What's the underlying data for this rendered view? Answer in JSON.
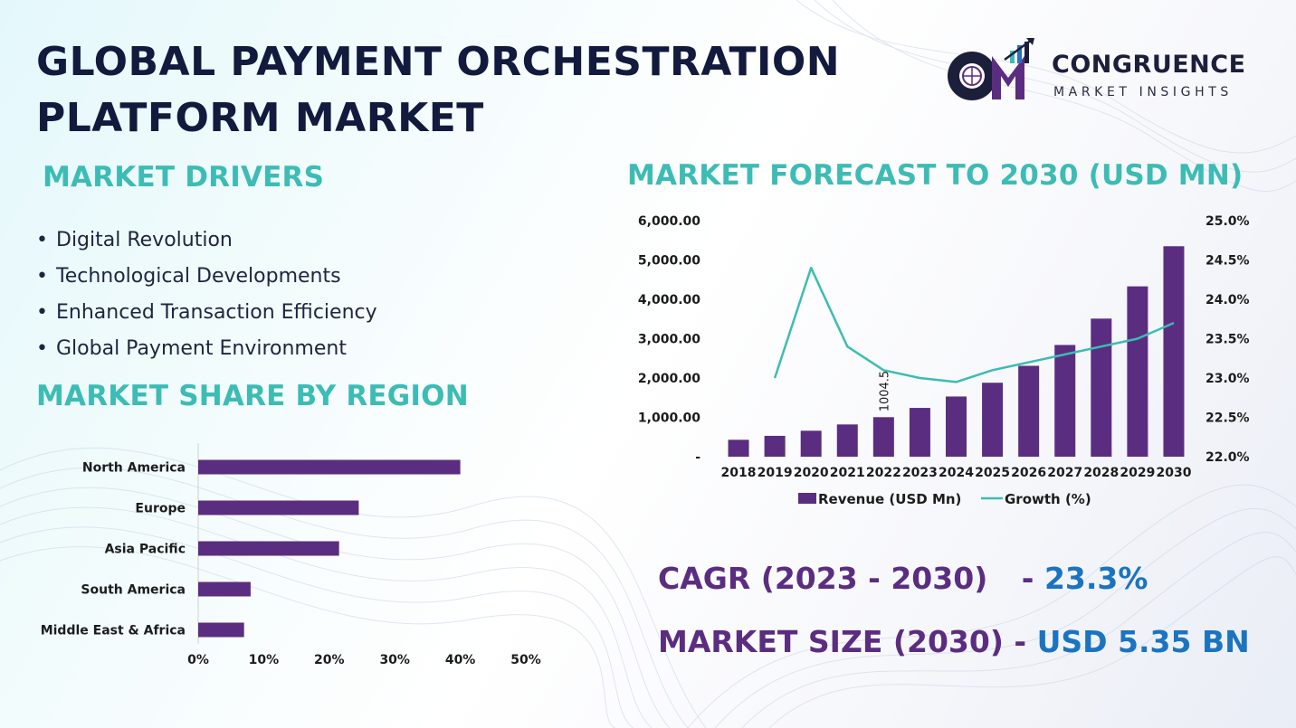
{
  "header": {
    "title_line1": "GLOBAL PAYMENT ORCHESTRATION",
    "title_line2": "PLATFORM MARKET"
  },
  "logo": {
    "name": "CONGRUENCE",
    "subtitle": "MARKET INSIGHTS"
  },
  "drivers": {
    "title": "MARKET DRIVERS",
    "items": [
      "Digital Revolution",
      "Technological Developments",
      "Enhanced Transaction Efficiency",
      "Global Payment Environment"
    ]
  },
  "regional": {
    "title": "MARKET SHARE BY REGION"
  },
  "forecast": {
    "title": "MARKET FORECAST TO 2030 (USD MN)"
  },
  "stats": {
    "cagr_label": "CAGR (2023 - 2030)",
    "cagr_sep": "- ",
    "cagr_value": "23.3%",
    "size_label": "MARKET SIZE (2030) -",
    "size_value": "USD 5.35 BN"
  },
  "colors": {
    "bar": "#5b2d80",
    "line": "#3cbcb4",
    "title_teal": "#3cbcb4",
    "title_dark": "#121a3d",
    "value_blue": "#1b74bf"
  },
  "chart_data": [
    {
      "type": "bar",
      "orientation": "horizontal",
      "categories": [
        "North America",
        "Europe",
        "Asia Pacific",
        "South America",
        "Middle East & Africa"
      ],
      "values": [
        40,
        24.5,
        21.5,
        8,
        7
      ],
      "value_unit": "%",
      "xlim": [
        0,
        50
      ],
      "xticks": [
        "0%",
        "10%",
        "20%",
        "30%",
        "40%",
        "50%"
      ],
      "grid": false,
      "color": "#5b2d80"
    },
    {
      "type": "bar",
      "categories": [
        "2018",
        "2019",
        "2020",
        "2021",
        "2022",
        "2023",
        "2024",
        "2025",
        "2026",
        "2027",
        "2028",
        "2029",
        "2030"
      ],
      "series": [
        {
          "name": "Revenue (USD Mn)",
          "type": "bar",
          "axis": "left",
          "values": [
            430,
            530,
            660,
            820,
            1004.5,
            1240,
            1530,
            1880,
            2310,
            2840,
            3510,
            4330,
            5350
          ],
          "color": "#5b2d80"
        },
        {
          "name": "Growth (%)",
          "type": "line",
          "axis": "right",
          "values": [
            null,
            23.0,
            24.4,
            23.4,
            23.1,
            23.0,
            22.95,
            23.1,
            23.2,
            23.3,
            23.4,
            23.5,
            23.7
          ],
          "color": "#3cbcb4"
        }
      ],
      "data_labels": [
        {
          "category": "2022",
          "text": "1004.5"
        }
      ],
      "y_left": {
        "ylim": [
          0,
          6000
        ],
        "ticks": [
          "-",
          "1,000.00",
          "2,000.00",
          "3,000.00",
          "4,000.00",
          "5,000.00",
          "6,000.00"
        ]
      },
      "y_right": {
        "ylim": [
          22,
          25
        ],
        "ticks": [
          "22.0%",
          "22.5%",
          "23.0%",
          "23.5%",
          "24.0%",
          "24.5%",
          "25.0%"
        ]
      },
      "legend": {
        "position": "bottom"
      },
      "grid": false
    }
  ]
}
